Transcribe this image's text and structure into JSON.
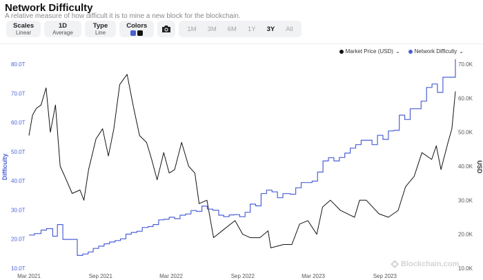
{
  "header": {
    "title": "Network Difficulty",
    "subtitle": "A relative measure of how difficult it is to mine a new block for the blockchain."
  },
  "toolbar": {
    "scales_label": "Scales",
    "scales_value": "Linear",
    "period_label": "1D",
    "period_value": "Average",
    "type_label": "Type",
    "type_value": "Line",
    "colors_label": "Colors",
    "camera_icon": "camera-icon",
    "ranges": [
      "1M",
      "3M",
      "6M",
      "1Y",
      "3Y",
      "All"
    ],
    "active_range": "3Y"
  },
  "watermark": "Blockchain.com",
  "chart_data": {
    "type": "line",
    "legend_placement": "top-right",
    "grid": false,
    "xlabel": "",
    "x_ticks": [
      "Mar 2021",
      "Sep 2021",
      "Mar 2022",
      "Sep 2022",
      "Mar 2023",
      "Sep 2023"
    ],
    "x_range": [
      "2021-03-01",
      "2024-02-29"
    ],
    "y_left": {
      "label": "Difficulty",
      "ticks": [
        "10.0T",
        "20.0T",
        "30.0T",
        "40.0T",
        "50.0T",
        "60.0T",
        "70.0T",
        "80.0T"
      ],
      "range": [
        10,
        80
      ],
      "color": "#4b5fd6"
    },
    "y_right": {
      "label": "USD",
      "ticks": [
        "10.0K",
        "20.0K",
        "30.0K",
        "40.0K",
        "50.0K",
        "60.0K",
        "70.0K"
      ],
      "range": [
        10,
        70
      ],
      "color": "#555555"
    },
    "series": [
      {
        "name": "Market Price (USD)",
        "axis": "right",
        "color": "#111111",
        "unit": "K USD",
        "points": [
          [
            "2021-03-01",
            49
          ],
          [
            "2021-03-10",
            55
          ],
          [
            "2021-03-20",
            57
          ],
          [
            "2021-04-01",
            58
          ],
          [
            "2021-04-14",
            63
          ],
          [
            "2021-04-25",
            50
          ],
          [
            "2021-05-08",
            58
          ],
          [
            "2021-05-20",
            40
          ],
          [
            "2021-06-01",
            37
          ],
          [
            "2021-06-20",
            32
          ],
          [
            "2021-07-10",
            33
          ],
          [
            "2021-07-20",
            30
          ],
          [
            "2021-08-01",
            39
          ],
          [
            "2021-08-20",
            48
          ],
          [
            "2021-09-06",
            51
          ],
          [
            "2021-09-21",
            43
          ],
          [
            "2021-10-05",
            51
          ],
          [
            "2021-10-20",
            64
          ],
          [
            "2021-11-08",
            67
          ],
          [
            "2021-11-25",
            57
          ],
          [
            "2021-12-10",
            49
          ],
          [
            "2021-12-28",
            47
          ],
          [
            "2022-01-10",
            42
          ],
          [
            "2022-01-24",
            36
          ],
          [
            "2022-02-10",
            44
          ],
          [
            "2022-02-24",
            38
          ],
          [
            "2022-03-10",
            39
          ],
          [
            "2022-03-28",
            47
          ],
          [
            "2022-04-15",
            40
          ],
          [
            "2022-05-01",
            38
          ],
          [
            "2022-05-12",
            29
          ],
          [
            "2022-06-01",
            30
          ],
          [
            "2022-06-18",
            19
          ],
          [
            "2022-07-10",
            21
          ],
          [
            "2022-08-12",
            24
          ],
          [
            "2022-09-01",
            20
          ],
          [
            "2022-09-20",
            19
          ],
          [
            "2022-10-15",
            19
          ],
          [
            "2022-11-05",
            21
          ],
          [
            "2022-11-12",
            16
          ],
          [
            "2022-12-15",
            17
          ],
          [
            "2023-01-05",
            17
          ],
          [
            "2023-01-25",
            23
          ],
          [
            "2023-02-15",
            24
          ],
          [
            "2023-03-10",
            20
          ],
          [
            "2023-03-25",
            28
          ],
          [
            "2023-04-14",
            30
          ],
          [
            "2023-05-10",
            27
          ],
          [
            "2023-06-15",
            25
          ],
          [
            "2023-06-28",
            30
          ],
          [
            "2023-07-15",
            30
          ],
          [
            "2023-08-17",
            26
          ],
          [
            "2023-09-10",
            25
          ],
          [
            "2023-10-05",
            27
          ],
          [
            "2023-10-24",
            34
          ],
          [
            "2023-11-15",
            37
          ],
          [
            "2023-12-05",
            44
          ],
          [
            "2023-12-30",
            42
          ],
          [
            "2024-01-11",
            46
          ],
          [
            "2024-01-23",
            39
          ],
          [
            "2024-02-10",
            47
          ],
          [
            "2024-02-20",
            51
          ],
          [
            "2024-02-29",
            62
          ]
        ]
      },
      {
        "name": "Network Difficulty",
        "axis": "left",
        "color": "#4b5fd6",
        "unit": "T",
        "points": [
          [
            "2021-03-01",
            21.4
          ],
          [
            "2021-03-15",
            21.9
          ],
          [
            "2021-04-01",
            23.1
          ],
          [
            "2021-04-15",
            23.6
          ],
          [
            "2021-05-01",
            21.0
          ],
          [
            "2021-05-13",
            25.0
          ],
          [
            "2021-05-27",
            19.9
          ],
          [
            "2021-06-12",
            19.9
          ],
          [
            "2021-07-03",
            14.4
          ],
          [
            "2021-07-17",
            14.9
          ],
          [
            "2021-07-31",
            15.6
          ],
          [
            "2021-08-13",
            16.8
          ],
          [
            "2021-08-27",
            17.6
          ],
          [
            "2021-09-10",
            18.4
          ],
          [
            "2021-09-24",
            19.0
          ],
          [
            "2021-10-08",
            19.5
          ],
          [
            "2021-10-22",
            20.1
          ],
          [
            "2021-11-05",
            21.7
          ],
          [
            "2021-11-19",
            22.3
          ],
          [
            "2021-12-03",
            22.7
          ],
          [
            "2021-12-17",
            24.0
          ],
          [
            "2022-01-01",
            24.3
          ],
          [
            "2022-01-14",
            25.0
          ],
          [
            "2022-01-28",
            26.6
          ],
          [
            "2022-02-10",
            26.8
          ],
          [
            "2022-02-24",
            27.5
          ],
          [
            "2022-03-10",
            27.0
          ],
          [
            "2022-03-24",
            28.2
          ],
          [
            "2022-04-07",
            28.6
          ],
          [
            "2022-04-21",
            29.8
          ],
          [
            "2022-05-05",
            29.5
          ],
          [
            "2022-05-19",
            31.3
          ],
          [
            "2022-06-02",
            30.3
          ],
          [
            "2022-06-16",
            29.9
          ],
          [
            "2022-07-01",
            28.2
          ],
          [
            "2022-07-14",
            27.7
          ],
          [
            "2022-07-28",
            28.3
          ],
          [
            "2022-08-10",
            28.4
          ],
          [
            "2022-08-24",
            27.7
          ],
          [
            "2022-09-07",
            29.2
          ],
          [
            "2022-09-20",
            32.0
          ],
          [
            "2022-10-04",
            31.4
          ],
          [
            "2022-10-18",
            35.6
          ],
          [
            "2022-11-01",
            36.8
          ],
          [
            "2022-11-15",
            36.2
          ],
          [
            "2022-11-29",
            34.2
          ],
          [
            "2022-12-13",
            35.6
          ],
          [
            "2023-01-01",
            35.4
          ],
          [
            "2023-01-15",
            37.6
          ],
          [
            "2023-01-29",
            39.4
          ],
          [
            "2023-02-12",
            39.4
          ],
          [
            "2023-02-26",
            39.9
          ],
          [
            "2023-03-12",
            43.0
          ],
          [
            "2023-03-26",
            46.8
          ],
          [
            "2023-04-09",
            47.9
          ],
          [
            "2023-04-23",
            46.8
          ],
          [
            "2023-05-07",
            48.0
          ],
          [
            "2023-05-21",
            49.5
          ],
          [
            "2023-06-04",
            51.2
          ],
          [
            "2023-06-18",
            52.4
          ],
          [
            "2023-07-02",
            53.9
          ],
          [
            "2023-07-16",
            53.9
          ],
          [
            "2023-07-30",
            52.4
          ],
          [
            "2023-08-13",
            55.6
          ],
          [
            "2023-08-27",
            54.2
          ],
          [
            "2023-09-10",
            57.1
          ],
          [
            "2023-09-24",
            57.3
          ],
          [
            "2023-10-08",
            62.5
          ],
          [
            "2023-10-22",
            61.0
          ],
          [
            "2023-11-05",
            64.7
          ],
          [
            "2023-11-19",
            64.7
          ],
          [
            "2023-12-03",
            67.3
          ],
          [
            "2023-12-17",
            72.0
          ],
          [
            "2023-12-31",
            73.2
          ],
          [
            "2024-01-14",
            70.3
          ],
          [
            "2024-01-28",
            75.5
          ],
          [
            "2024-02-11",
            75.5
          ],
          [
            "2024-02-29",
            81.7
          ]
        ]
      }
    ]
  }
}
